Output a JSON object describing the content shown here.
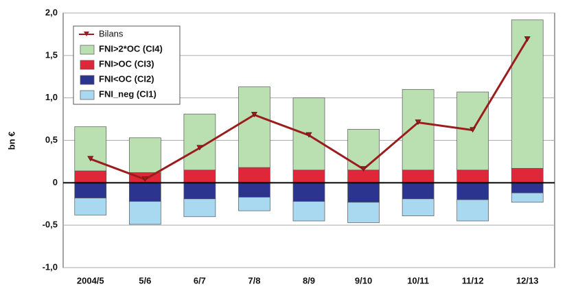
{
  "chart_data": {
    "type": "bar",
    "stacked": true,
    "y_label": "bn €",
    "categories": [
      "2004/5",
      "5/6",
      "6/7",
      "7/8",
      "8/9",
      "9/10",
      "10/11",
      "11/12",
      "12/13"
    ],
    "series": [
      {
        "name": "Bilans",
        "type": "line",
        "color": "#9b1c1c",
        "values": [
          0.28,
          0.04,
          0.41,
          0.8,
          0.56,
          0.16,
          0.71,
          0.62,
          1.69
        ]
      },
      {
        "name": "FNI>2*OC (CI4)",
        "color": "#badfb1",
        "values": [
          0.52,
          0.41,
          0.66,
          0.95,
          0.85,
          0.48,
          0.95,
          0.92,
          1.75
        ]
      },
      {
        "name": "FNI>OC (CI3)",
        "color": "#e0273a",
        "values": [
          0.14,
          0.12,
          0.15,
          0.18,
          0.15,
          0.15,
          0.15,
          0.15,
          0.17
        ]
      },
      {
        "name": "FNI<OC (CI2)",
        "color": "#2b3590",
        "values": [
          -0.18,
          -0.22,
          -0.19,
          -0.17,
          -0.22,
          -0.23,
          -0.19,
          -0.2,
          -0.12
        ]
      },
      {
        "name": "FNI_neg (CI1)",
        "color": "#a9d9f1",
        "values": [
          -0.2,
          -0.27,
          -0.21,
          -0.16,
          -0.23,
          -0.24,
          -0.2,
          -0.25,
          -0.11
        ]
      }
    ],
    "ylim": [
      -1.0,
      2.0
    ],
    "yticks": [
      {
        "value": -1.0,
        "label": "-1,0"
      },
      {
        "value": -0.5,
        "label": "-0,5"
      },
      0,
      {
        "value": 0.5,
        "label": "0,5"
      },
      {
        "value": 1.0,
        "label": "1,0"
      },
      {
        "value": 1.5,
        "label": "1,5"
      },
      {
        "value": 2.0,
        "label": "2,0"
      }
    ],
    "grid": true,
    "legend": "upper left"
  }
}
